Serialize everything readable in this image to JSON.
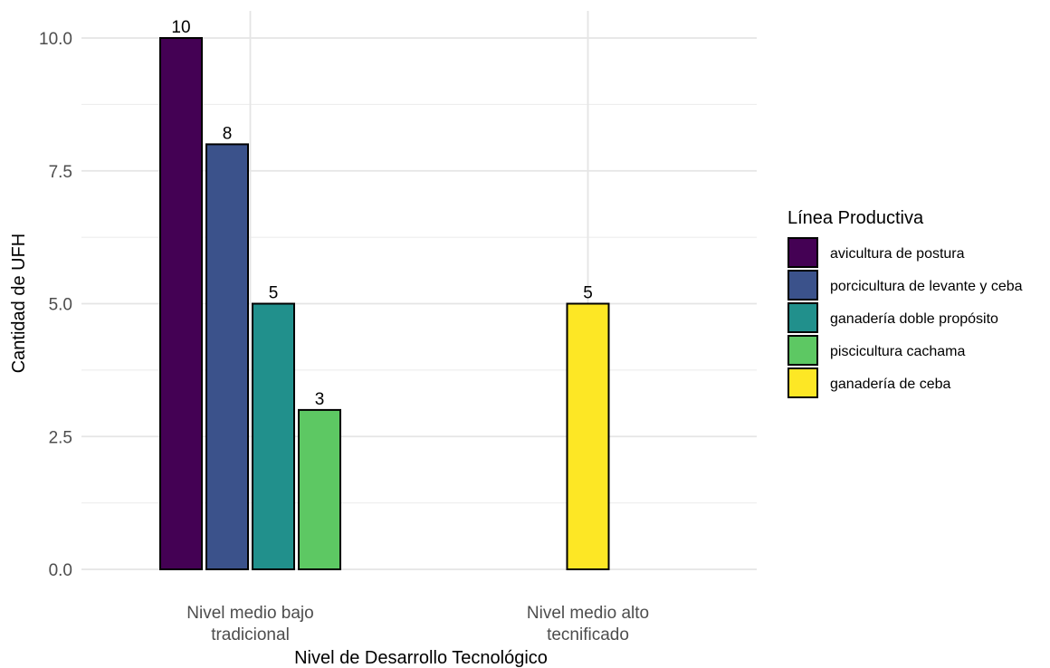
{
  "chart_data": {
    "type": "bar",
    "title": "",
    "xlabel": "Nivel de Desarrollo Tecnológico",
    "ylabel": "Cantidad de UFH",
    "ylim": [
      0,
      10
    ],
    "y_ticks": [
      "0.0",
      "2.5",
      "5.0",
      "7.5",
      "10.0"
    ],
    "categories": [
      [
        "Nivel medio bajo",
        "tradicional"
      ],
      [
        "Nivel medio alto",
        "tecnificado"
      ]
    ],
    "grid": true,
    "legend": {
      "title": "Línea Productiva",
      "position": "right"
    },
    "series": [
      {
        "name": "avicultura de postura",
        "color": "#440154",
        "values": [
          10,
          null
        ]
      },
      {
        "name": "porcicultura de levante y ceba",
        "color": "#3B528B",
        "values": [
          8,
          null
        ]
      },
      {
        "name": "ganadería doble propósito",
        "color": "#21908C",
        "values": [
          5,
          null
        ]
      },
      {
        "name": "piscicultura cachama",
        "color": "#5DC863",
        "values": [
          3,
          null
        ]
      },
      {
        "name": "ganadería de ceba",
        "color": "#FDE725",
        "values": [
          null,
          5
        ]
      }
    ]
  }
}
